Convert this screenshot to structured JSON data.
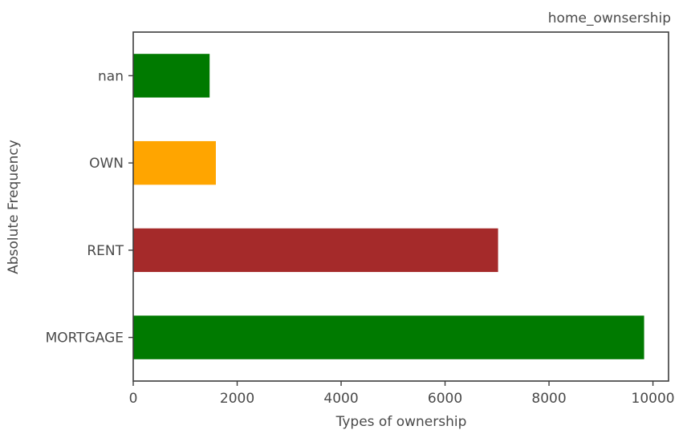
{
  "chart_data": {
    "type": "bar",
    "orientation": "horizontal",
    "title": "home_ownsership",
    "title_position": "top-right",
    "xlabel": "Types of ownership",
    "ylabel": "Absolute Frequency",
    "categories": [
      "MORTGAGE",
      "RENT",
      "OWN",
      "nan"
    ],
    "values": [
      9830,
      7020,
      1590,
      1470
    ],
    "colors": [
      "#007a00",
      "#a52a2a",
      "#ffa500",
      "#007a00"
    ],
    "xlim": [
      0,
      10300
    ],
    "xticks": [
      0,
      2000,
      4000,
      6000,
      8000,
      10000
    ],
    "xtick_labels": [
      "0",
      "2000",
      "4000",
      "6000",
      "8000",
      "10000"
    ],
    "grid": false,
    "legend": false
  }
}
